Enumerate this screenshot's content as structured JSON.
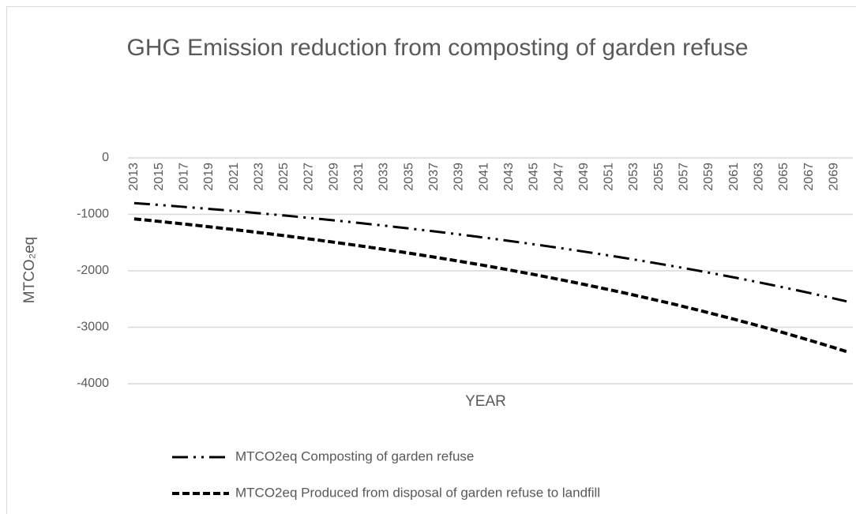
{
  "chart_data": {
    "type": "line",
    "title": "GHG Emission reduction from composting of garden refuse",
    "x_label": "YEAR",
    "y_label": "MTCO₂eq",
    "categories": [
      2013,
      null,
      2015,
      null,
      2017,
      null,
      2019,
      null,
      2021,
      null,
      2023,
      null,
      2025,
      null,
      2027,
      null,
      2029,
      null,
      2031,
      null,
      2033,
      null,
      2035,
      null,
      2037,
      null,
      2039,
      null,
      2041,
      null,
      2043,
      null,
      2045,
      null,
      2047,
      null,
      2049,
      null,
      2051,
      null,
      2053,
      null,
      2055,
      null,
      2057,
      null,
      2059,
      null,
      2061,
      null,
      2063,
      null,
      2065,
      null,
      2067,
      null,
      2069,
      null
    ],
    "series": [
      {
        "name": "MTCO2eq Composting of garden refuse",
        "color": "#000000",
        "dash": "dash-dot-dot",
        "values": [
          -800,
          -816,
          -833,
          -850,
          -868,
          -885,
          -904,
          -922,
          -941,
          -960,
          -980,
          -1000,
          -1020,
          -1041,
          -1063,
          -1084,
          -1107,
          -1129,
          -1152,
          -1176,
          -1200,
          -1225,
          -1250,
          -1275,
          -1301,
          -1328,
          -1355,
          -1383,
          -1411,
          -1440,
          -1470,
          -1500,
          -1531,
          -1562,
          -1594,
          -1627,
          -1660,
          -1694,
          -1729,
          -1764,
          -1800,
          -1837,
          -1875,
          -1913,
          -1952,
          -1992,
          -2033,
          -2075,
          -2117,
          -2160,
          -2205,
          -2250,
          -2296,
          -2343,
          -2391,
          -2440,
          -2490,
          -2541
        ]
      },
      {
        "name": "MTCO2eq Produced from disposal of garden refuse to landfill",
        "color": "#000000",
        "dash": "dash",
        "values": [
          -1080,
          -1102,
          -1125,
          -1148,
          -1171,
          -1195,
          -1220,
          -1245,
          -1270,
          -1296,
          -1323,
          -1350,
          -1378,
          -1406,
          -1435,
          -1464,
          -1494,
          -1525,
          -1556,
          -1588,
          -1620,
          -1653,
          -1687,
          -1722,
          -1757,
          -1793,
          -1830,
          -1867,
          -1905,
          -1944,
          -1984,
          -2025,
          -2066,
          -2109,
          -2152,
          -2196,
          -2241,
          -2287,
          -2334,
          -2381,
          -2430,
          -2480,
          -2531,
          -2582,
          -2635,
          -2689,
          -2745,
          -2801,
          -2858,
          -2917,
          -2976,
          -3037,
          -3099,
          -3163,
          -3228,
          -3294,
          -3361,
          -3430
        ]
      }
    ],
    "ylim": [
      -4000,
      0
    ],
    "yticks": [
      0,
      -1000,
      -2000,
      -3000,
      -4000
    ],
    "grid": true,
    "legend": "bottom"
  }
}
